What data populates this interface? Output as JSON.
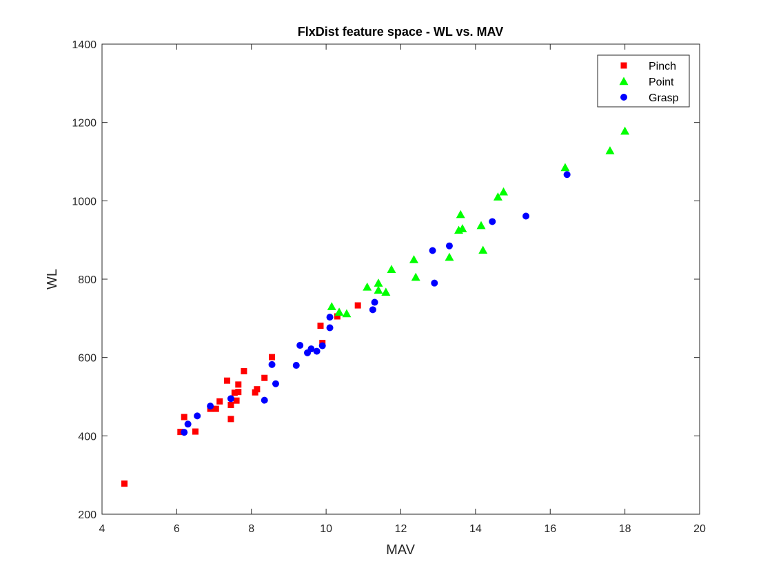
{
  "chart_data": {
    "type": "scatter",
    "title": "FlxDist feature space - WL vs. MAV",
    "xlabel": "MAV",
    "ylabel": "WL",
    "xlim": [
      4,
      20
    ],
    "ylim": [
      200,
      1400
    ],
    "xticks": [
      "4",
      "6",
      "8",
      "10",
      "12",
      "14",
      "16",
      "18",
      "20"
    ],
    "yticks": [
      "200",
      "400",
      "600",
      "800",
      "1000",
      "1200",
      "1400"
    ],
    "grid": false,
    "legend": "top-right",
    "series": [
      {
        "name": "Pinch",
        "marker": "square",
        "color": "#ff0000",
        "points": [
          [
            4.6,
            278
          ],
          [
            6.1,
            410
          ],
          [
            6.2,
            448
          ],
          [
            6.5,
            411
          ],
          [
            6.9,
            469
          ],
          [
            7.05,
            469
          ],
          [
            7.15,
            488
          ],
          [
            7.35,
            541
          ],
          [
            7.45,
            479
          ],
          [
            7.45,
            443
          ],
          [
            7.55,
            510
          ],
          [
            7.6,
            490
          ],
          [
            7.65,
            531
          ],
          [
            7.65,
            512
          ],
          [
            7.8,
            565
          ],
          [
            8.1,
            511
          ],
          [
            8.15,
            519
          ],
          [
            8.35,
            548
          ],
          [
            8.55,
            601
          ],
          [
            9.85,
            681
          ],
          [
            9.9,
            637
          ],
          [
            10.3,
            705
          ],
          [
            10.85,
            733
          ]
        ]
      },
      {
        "name": "Point",
        "marker": "triangle",
        "color": "#00ff00",
        "points": [
          [
            10.15,
            730
          ],
          [
            10.35,
            716
          ],
          [
            10.55,
            712
          ],
          [
            11.1,
            780
          ],
          [
            11.4,
            790
          ],
          [
            11.4,
            772
          ],
          [
            11.6,
            767
          ],
          [
            11.75,
            825
          ],
          [
            12.35,
            850
          ],
          [
            12.4,
            805
          ],
          [
            13.3,
            856
          ],
          [
            13.55,
            925
          ],
          [
            13.6,
            965
          ],
          [
            13.65,
            929
          ],
          [
            14.15,
            937
          ],
          [
            14.2,
            874
          ],
          [
            14.6,
            1010
          ],
          [
            14.75,
            1023
          ],
          [
            16.4,
            1085
          ],
          [
            17.6,
            1128
          ],
          [
            18,
            1178
          ]
        ]
      },
      {
        "name": "Grasp",
        "marker": "circle",
        "color": "#0000ff",
        "points": [
          [
            6.2,
            409
          ],
          [
            6.3,
            430
          ],
          [
            6.55,
            451
          ],
          [
            6.9,
            476
          ],
          [
            7.45,
            495
          ],
          [
            8.35,
            491
          ],
          [
            8.55,
            582
          ],
          [
            8.65,
            533
          ],
          [
            9.2,
            580
          ],
          [
            9.3,
            631
          ],
          [
            9.5,
            612
          ],
          [
            9.6,
            622
          ],
          [
            9.75,
            616
          ],
          [
            9.9,
            630
          ],
          [
            10.1,
            703
          ],
          [
            10.1,
            676
          ],
          [
            11.25,
            722
          ],
          [
            11.3,
            741
          ],
          [
            12.85,
            873
          ],
          [
            12.9,
            790
          ],
          [
            13.3,
            885
          ],
          [
            14.45,
            947
          ],
          [
            15.35,
            961
          ],
          [
            16.45,
            1067
          ]
        ]
      }
    ]
  }
}
